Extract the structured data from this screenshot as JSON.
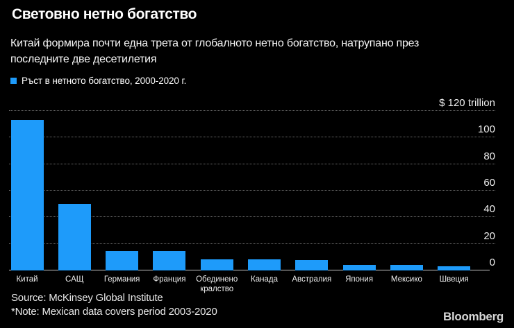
{
  "header": {
    "title": "Световно нетно богатство",
    "subtitle_lines": [
      "Китай формира почти една трета от глобалното нетно богатство, натрупано през",
      "последните две десетилетия"
    ],
    "legend_label": "Ръст в нетното богатство, 2000-2020 г."
  },
  "colors": {
    "background": "#000000",
    "bar": "#1e9bfa",
    "legend_swatch": "#1e9bfa"
  },
  "chart_data": {
    "type": "bar",
    "title": "Световно нетно богатство",
    "subtitle": "Китай формира почти една трета от глобалното нетно богатство, натрупано през последните две десетилетия",
    "legend": [
      "Ръст в нетното богатство, 2000-2020 г."
    ],
    "legend_position": "top-left",
    "unit": "$ trillion",
    "categories": [
      "Китай",
      "САЩ",
      "Германия",
      "Франция",
      "Обединено кралство",
      "Канада",
      "Австралия",
      "Япония",
      "Мексико",
      "Швеция"
    ],
    "values": [
      113,
      50,
      14.4,
      14.7,
      8.2,
      8.2,
      7.8,
      4.0,
      4.3,
      3.2
    ],
    "ylim": [
      0,
      120
    ],
    "grid": "horizontal-dotted",
    "yticks": [
      {
        "value": 120,
        "label": "$ 120 trillion"
      },
      {
        "value": 100,
        "label": "100"
      },
      {
        "value": 80,
        "label": "80"
      },
      {
        "value": 60,
        "label": "60"
      },
      {
        "value": 40,
        "label": "40"
      },
      {
        "value": 20,
        "label": "20"
      },
      {
        "value": 0,
        "label": "0"
      }
    ]
  },
  "footer": {
    "source": "Source: McKinsey Global Institute",
    "note": "*Note: Mexican data covers period 2003-2020",
    "brand": "Bloomberg"
  }
}
